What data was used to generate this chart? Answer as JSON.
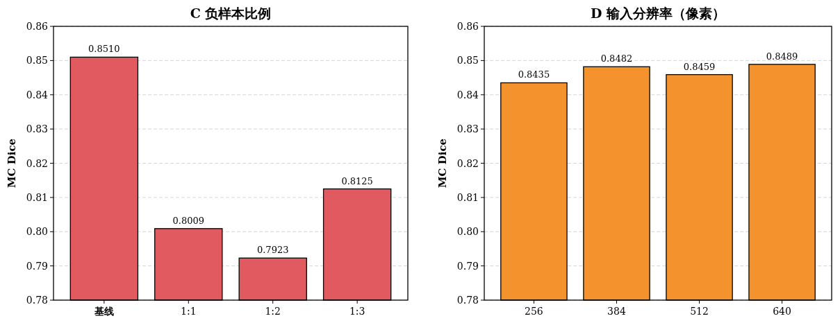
{
  "chart_data": [
    {
      "type": "bar",
      "title": "C 负样本比例",
      "ylabel": "MC Dice",
      "categories": [
        "**基线**",
        "1:1",
        "1:2",
        "1:3"
      ],
      "values": [
        0.851,
        0.8009,
        0.7923,
        0.8125
      ],
      "value_labels": [
        "0.8510",
        "0.8009",
        "0.7923",
        "0.8125"
      ],
      "color": "#e05a5f",
      "ylim": [
        0.78,
        0.86
      ],
      "yticks": [
        0.78,
        0.79,
        {
          "value": 0.8,
          "label": "0.80"
        },
        0.81,
        0.82,
        0.83,
        0.84,
        0.85,
        0.86
      ],
      "grid": "y"
    },
    {
      "type": "bar",
      "title": "D 输入分辨率（像素）",
      "ylabel": "MC Dice",
      "categories": [
        "256",
        "384",
        "512",
        "640"
      ],
      "values": [
        0.8435,
        0.8482,
        0.8459,
        0.8489
      ],
      "value_labels": [
        "0.8435",
        "0.8482",
        "0.8459",
        "0.8489"
      ],
      "color": "#f4922e",
      "ylim": [
        0.78,
        0.86
      ],
      "yticks": [
        0.78,
        0.79,
        {
          "value": 0.8,
          "label": "0.80"
        },
        0.81,
        0.82,
        0.83,
        0.84,
        0.85,
        0.86
      ],
      "grid": "y"
    }
  ]
}
